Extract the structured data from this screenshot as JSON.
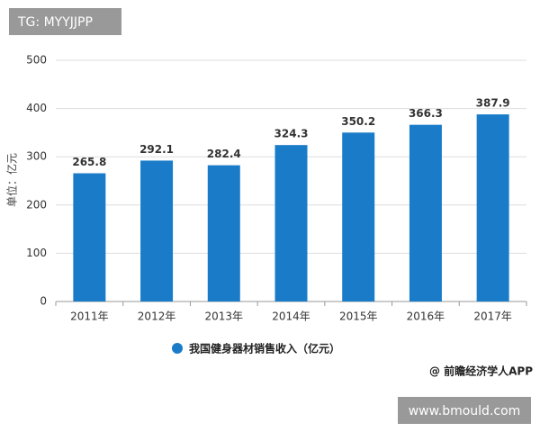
{
  "chart_data": {
    "type": "bar",
    "categories": [
      "2011年",
      "2012年",
      "2013年",
      "2014年",
      "2015年",
      "2016年",
      "2017年"
    ],
    "values": [
      265.8,
      292.1,
      282.4,
      324.3,
      350.2,
      366.3,
      387.9
    ],
    "color": "#1a7cc8",
    "ylim": [
      0,
      500
    ],
    "yticks": [
      0,
      100,
      200,
      300,
      400,
      500
    ],
    "grid": true,
    "y_label": "单位：亿元",
    "legend": "我国健身器材销售收入（亿元）",
    "annotations": [
      "TG: MYYJJPP",
      "@ 前瞻经济学人APP",
      "www.bmould.com"
    ]
  }
}
